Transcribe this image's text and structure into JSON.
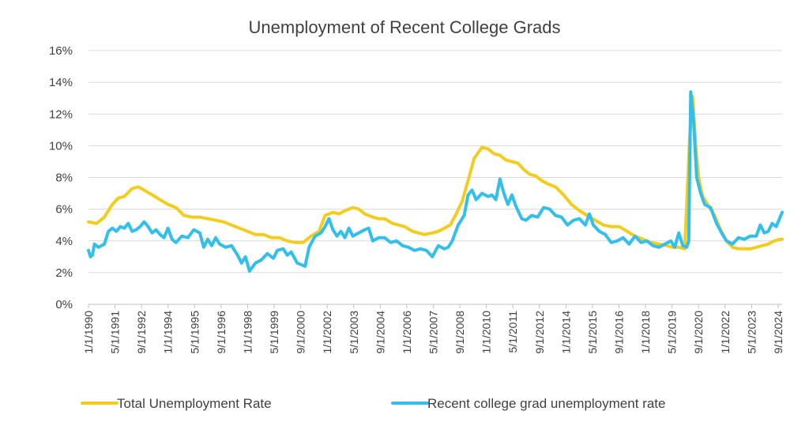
{
  "chart_data": {
    "type": "line",
    "title": "Unemployment of Recent College Grads",
    "xlabel": "",
    "ylabel": "",
    "ylim": [
      0,
      16
    ],
    "yticks": [
      "0%",
      "2%",
      "4%",
      "6%",
      "8%",
      "10%",
      "12%",
      "14%",
      "16%"
    ],
    "xlim": [
      1990.0,
      2024.9
    ],
    "xtick_labels": [
      "1/1/1990",
      "5/1/1991",
      "9/1/1992",
      "1/1/1994",
      "5/1/1995",
      "9/1/1996",
      "1/1/1998",
      "5/1/1999",
      "9/1/2000",
      "1/1/2002",
      "5/1/2003",
      "9/1/2004",
      "1/1/2006",
      "5/1/2007",
      "9/1/2008",
      "1/1/2010",
      "5/1/2011",
      "9/1/2012",
      "1/1/2014",
      "5/1/2015",
      "9/1/2016",
      "1/1/2018",
      "5/1/2019",
      "9/1/2020",
      "1/1/2022",
      "5/1/2023",
      "9/1/2024"
    ],
    "grid": true,
    "legend": "bottom",
    "series": [
      {
        "name": "Total Unemployment Rate",
        "color": "#F2CC1F",
        "points": [
          [
            1990.0,
            5.2
          ],
          [
            1990.4,
            5.1
          ],
          [
            1990.8,
            5.5
          ],
          [
            1991.2,
            6.3
          ],
          [
            1991.5,
            6.7
          ],
          [
            1991.8,
            6.8
          ],
          [
            1992.2,
            7.3
          ],
          [
            1992.5,
            7.4
          ],
          [
            1992.8,
            7.2
          ],
          [
            1993.2,
            6.9
          ],
          [
            1993.6,
            6.6
          ],
          [
            1994.0,
            6.3
          ],
          [
            1994.4,
            6.1
          ],
          [
            1994.8,
            5.6
          ],
          [
            1995.2,
            5.5
          ],
          [
            1995.6,
            5.5
          ],
          [
            1996.0,
            5.4
          ],
          [
            1996.4,
            5.3
          ],
          [
            1996.8,
            5.2
          ],
          [
            1997.2,
            5.0
          ],
          [
            1997.6,
            4.8
          ],
          [
            1998.0,
            4.6
          ],
          [
            1998.4,
            4.4
          ],
          [
            1998.8,
            4.4
          ],
          [
            1999.2,
            4.2
          ],
          [
            1999.6,
            4.2
          ],
          [
            2000.0,
            4.0
          ],
          [
            2000.4,
            3.9
          ],
          [
            2000.8,
            3.9
          ],
          [
            2001.2,
            4.3
          ],
          [
            2001.6,
            4.6
          ],
          [
            2001.9,
            5.6
          ],
          [
            2002.3,
            5.8
          ],
          [
            2002.6,
            5.7
          ],
          [
            2002.9,
            5.9
          ],
          [
            2003.3,
            6.1
          ],
          [
            2003.6,
            6.0
          ],
          [
            2003.9,
            5.7
          ],
          [
            2004.3,
            5.5
          ],
          [
            2004.6,
            5.4
          ],
          [
            2004.9,
            5.4
          ],
          [
            2005.3,
            5.1
          ],
          [
            2005.6,
            5.0
          ],
          [
            2005.9,
            4.9
          ],
          [
            2006.3,
            4.6
          ],
          [
            2006.6,
            4.5
          ],
          [
            2006.9,
            4.4
          ],
          [
            2007.3,
            4.5
          ],
          [
            2007.6,
            4.6
          ],
          [
            2007.9,
            4.8
          ],
          [
            2008.2,
            5.0
          ],
          [
            2008.5,
            5.7
          ],
          [
            2008.8,
            6.5
          ],
          [
            2009.1,
            7.8
          ],
          [
            2009.4,
            9.2
          ],
          [
            2009.8,
            9.9
          ],
          [
            2010.1,
            9.8
          ],
          [
            2010.4,
            9.5
          ],
          [
            2010.7,
            9.4
          ],
          [
            2011.0,
            9.1
          ],
          [
            2011.3,
            9.0
          ],
          [
            2011.6,
            8.9
          ],
          [
            2011.9,
            8.5
          ],
          [
            2012.2,
            8.2
          ],
          [
            2012.5,
            8.1
          ],
          [
            2012.8,
            7.8
          ],
          [
            2013.1,
            7.6
          ],
          [
            2013.5,
            7.4
          ],
          [
            2013.9,
            6.9
          ],
          [
            2014.3,
            6.3
          ],
          [
            2014.7,
            5.9
          ],
          [
            2015.1,
            5.6
          ],
          [
            2015.5,
            5.3
          ],
          [
            2015.9,
            5.0
          ],
          [
            2016.3,
            4.9
          ],
          [
            2016.7,
            4.9
          ],
          [
            2017.1,
            4.6
          ],
          [
            2017.5,
            4.3
          ],
          [
            2017.9,
            4.1
          ],
          [
            2018.3,
            3.9
          ],
          [
            2018.7,
            3.8
          ],
          [
            2019.1,
            3.7
          ],
          [
            2019.4,
            3.6
          ],
          [
            2019.7,
            3.6
          ],
          [
            2020.0,
            3.5
          ],
          [
            2020.25,
            10.5
          ],
          [
            2020.4,
            13.1
          ],
          [
            2020.55,
            10.0
          ],
          [
            2020.7,
            8.0
          ],
          [
            2020.9,
            6.8
          ],
          [
            2021.2,
            6.2
          ],
          [
            2021.5,
            5.6
          ],
          [
            2021.8,
            4.7
          ],
          [
            2022.1,
            4.0
          ],
          [
            2022.4,
            3.6
          ],
          [
            2022.7,
            3.5
          ],
          [
            2023.0,
            3.5
          ],
          [
            2023.3,
            3.5
          ],
          [
            2023.6,
            3.6
          ],
          [
            2023.9,
            3.7
          ],
          [
            2024.2,
            3.8
          ],
          [
            2024.5,
            4.0
          ],
          [
            2024.8,
            4.1
          ],
          [
            2024.9,
            4.1
          ]
        ]
      },
      {
        "name": "Recent college grad unemployment rate",
        "color": "#33BFEA",
        "points": [
          [
            1990.0,
            3.4
          ],
          [
            1990.1,
            3.0
          ],
          [
            1990.2,
            3.1
          ],
          [
            1990.3,
            3.8
          ],
          [
            1990.5,
            3.6
          ],
          [
            1990.8,
            3.8
          ],
          [
            1991.0,
            4.6
          ],
          [
            1991.2,
            4.8
          ],
          [
            1991.4,
            4.6
          ],
          [
            1991.6,
            4.9
          ],
          [
            1991.8,
            4.8
          ],
          [
            1992.0,
            5.1
          ],
          [
            1992.2,
            4.6
          ],
          [
            1992.4,
            4.7
          ],
          [
            1992.6,
            4.9
          ],
          [
            1992.8,
            5.2
          ],
          [
            1993.0,
            4.9
          ],
          [
            1993.2,
            4.5
          ],
          [
            1993.4,
            4.7
          ],
          [
            1993.6,
            4.4
          ],
          [
            1993.8,
            4.2
          ],
          [
            1994.0,
            4.8
          ],
          [
            1994.2,
            4.1
          ],
          [
            1994.4,
            3.9
          ],
          [
            1994.7,
            4.3
          ],
          [
            1995.0,
            4.2
          ],
          [
            1995.3,
            4.7
          ],
          [
            1995.6,
            4.5
          ],
          [
            1995.8,
            3.6
          ],
          [
            1996.0,
            4.1
          ],
          [
            1996.2,
            3.7
          ],
          [
            1996.4,
            4.2
          ],
          [
            1996.6,
            3.8
          ],
          [
            1996.9,
            3.6
          ],
          [
            1997.2,
            3.7
          ],
          [
            1997.5,
            3.1
          ],
          [
            1997.7,
            2.6
          ],
          [
            1997.9,
            3.0
          ],
          [
            1998.1,
            2.1
          ],
          [
            1998.4,
            2.6
          ],
          [
            1998.7,
            2.8
          ],
          [
            1999.0,
            3.2
          ],
          [
            1999.3,
            2.9
          ],
          [
            1999.5,
            3.4
          ],
          [
            1999.8,
            3.5
          ],
          [
            2000.0,
            3.1
          ],
          [
            2000.2,
            3.3
          ],
          [
            2000.5,
            2.6
          ],
          [
            2000.7,
            2.5
          ],
          [
            2000.9,
            2.4
          ],
          [
            2001.1,
            3.6
          ],
          [
            2001.4,
            4.3
          ],
          [
            2001.7,
            4.5
          ],
          [
            2001.9,
            4.9
          ],
          [
            2002.1,
            5.4
          ],
          [
            2002.3,
            4.7
          ],
          [
            2002.5,
            4.3
          ],
          [
            2002.7,
            4.6
          ],
          [
            2002.9,
            4.2
          ],
          [
            2003.1,
            4.8
          ],
          [
            2003.3,
            4.3
          ],
          [
            2003.6,
            4.5
          ],
          [
            2003.9,
            4.7
          ],
          [
            2004.1,
            4.8
          ],
          [
            2004.3,
            4.0
          ],
          [
            2004.6,
            4.2
          ],
          [
            2004.9,
            4.2
          ],
          [
            2005.2,
            3.9
          ],
          [
            2005.5,
            4.0
          ],
          [
            2005.8,
            3.7
          ],
          [
            2006.1,
            3.6
          ],
          [
            2006.4,
            3.4
          ],
          [
            2006.7,
            3.5
          ],
          [
            2007.0,
            3.4
          ],
          [
            2007.3,
            3.0
          ],
          [
            2007.6,
            3.7
          ],
          [
            2007.9,
            3.5
          ],
          [
            2008.1,
            3.6
          ],
          [
            2008.3,
            4.0
          ],
          [
            2008.6,
            5.0
          ],
          [
            2008.9,
            5.6
          ],
          [
            2009.1,
            6.9
          ],
          [
            2009.3,
            7.2
          ],
          [
            2009.5,
            6.6
          ],
          [
            2009.8,
            7.0
          ],
          [
            2010.1,
            6.8
          ],
          [
            2010.3,
            6.9
          ],
          [
            2010.5,
            6.6
          ],
          [
            2010.7,
            7.9
          ],
          [
            2010.9,
            7.0
          ],
          [
            2011.1,
            6.3
          ],
          [
            2011.3,
            6.9
          ],
          [
            2011.5,
            6.2
          ],
          [
            2011.8,
            5.4
          ],
          [
            2012.0,
            5.3
          ],
          [
            2012.3,
            5.6
          ],
          [
            2012.6,
            5.5
          ],
          [
            2012.9,
            6.1
          ],
          [
            2013.2,
            6.0
          ],
          [
            2013.5,
            5.6
          ],
          [
            2013.8,
            5.5
          ],
          [
            2014.1,
            5.0
          ],
          [
            2014.4,
            5.3
          ],
          [
            2014.7,
            5.4
          ],
          [
            2015.0,
            5.0
          ],
          [
            2015.2,
            5.7
          ],
          [
            2015.4,
            5.0
          ],
          [
            2015.7,
            4.6
          ],
          [
            2016.0,
            4.4
          ],
          [
            2016.3,
            3.9
          ],
          [
            2016.6,
            4.0
          ],
          [
            2016.9,
            4.2
          ],
          [
            2017.2,
            3.8
          ],
          [
            2017.5,
            4.3
          ],
          [
            2017.8,
            3.9
          ],
          [
            2018.1,
            4.0
          ],
          [
            2018.4,
            3.7
          ],
          [
            2018.7,
            3.6
          ],
          [
            2019.0,
            3.8
          ],
          [
            2019.3,
            4.0
          ],
          [
            2019.5,
            3.6
          ],
          [
            2019.7,
            4.5
          ],
          [
            2019.9,
            3.7
          ],
          [
            2020.1,
            3.6
          ],
          [
            2020.2,
            4.0
          ],
          [
            2020.3,
            13.4
          ],
          [
            2020.45,
            11.5
          ],
          [
            2020.6,
            8.0
          ],
          [
            2020.8,
            7.0
          ],
          [
            2021.0,
            6.3
          ],
          [
            2021.3,
            6.1
          ],
          [
            2021.6,
            5.1
          ],
          [
            2021.9,
            4.4
          ],
          [
            2022.1,
            4.0
          ],
          [
            2022.4,
            3.8
          ],
          [
            2022.7,
            4.2
          ],
          [
            2023.0,
            4.1
          ],
          [
            2023.3,
            4.3
          ],
          [
            2023.6,
            4.3
          ],
          [
            2023.8,
            5.0
          ],
          [
            2024.0,
            4.5
          ],
          [
            2024.2,
            4.6
          ],
          [
            2024.4,
            5.1
          ],
          [
            2024.6,
            4.9
          ],
          [
            2024.9,
            5.8
          ]
        ]
      }
    ]
  }
}
